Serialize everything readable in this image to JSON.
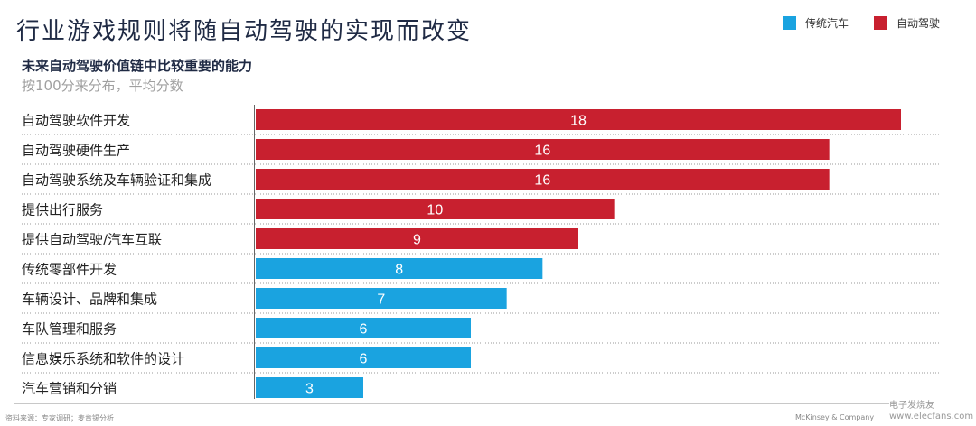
{
  "title": "行业游戏规则将随自动驾驶的实现而改变",
  "legend": [
    {
      "label": "传统汽车",
      "color": "#1aa3e0"
    },
    {
      "label": "自动驾驶",
      "color": "#c8202f"
    }
  ],
  "subtitle": "未来自动驾驶价值链中比较重要的能力",
  "subtitle2": "按100分来分布，平均分数",
  "source": "资料来源：专家调研；麦肯锡分析",
  "footer_brand": "McKinsey & Company",
  "watermark": "电子发烧友 www.elecfans.com",
  "chart_data": {
    "type": "bar",
    "orientation": "horizontal",
    "title": "未来自动驾驶价值链中比较重要的能力",
    "subtitle": "按100分来分布，平均分数",
    "categories": [
      "自动驾驶软件开发",
      "自动驾驶硬件生产",
      "自动驾驶系统及车辆验证和集成",
      "提供出行服务",
      "提供自动驾驶/汽车互联",
      "传统零部件开发",
      "车辆设计、品牌和集成",
      "车队管理和服务",
      "信息娱乐系统和软件的设计",
      "汽车营销和分销"
    ],
    "values": [
      18,
      16,
      16,
      10,
      9,
      8,
      7,
      6,
      6,
      3
    ],
    "group": [
      "自动驾驶",
      "自动驾驶",
      "自动驾驶",
      "自动驾驶",
      "自动驾驶",
      "传统汽车",
      "传统汽车",
      "传统汽车",
      "传统汽车",
      "传统汽车"
    ],
    "colors": {
      "自动驾驶": "#c8202f",
      "传统汽车": "#1aa3e0"
    },
    "xlim": [
      0,
      18
    ],
    "grid": false,
    "legend_position": "top-right"
  }
}
